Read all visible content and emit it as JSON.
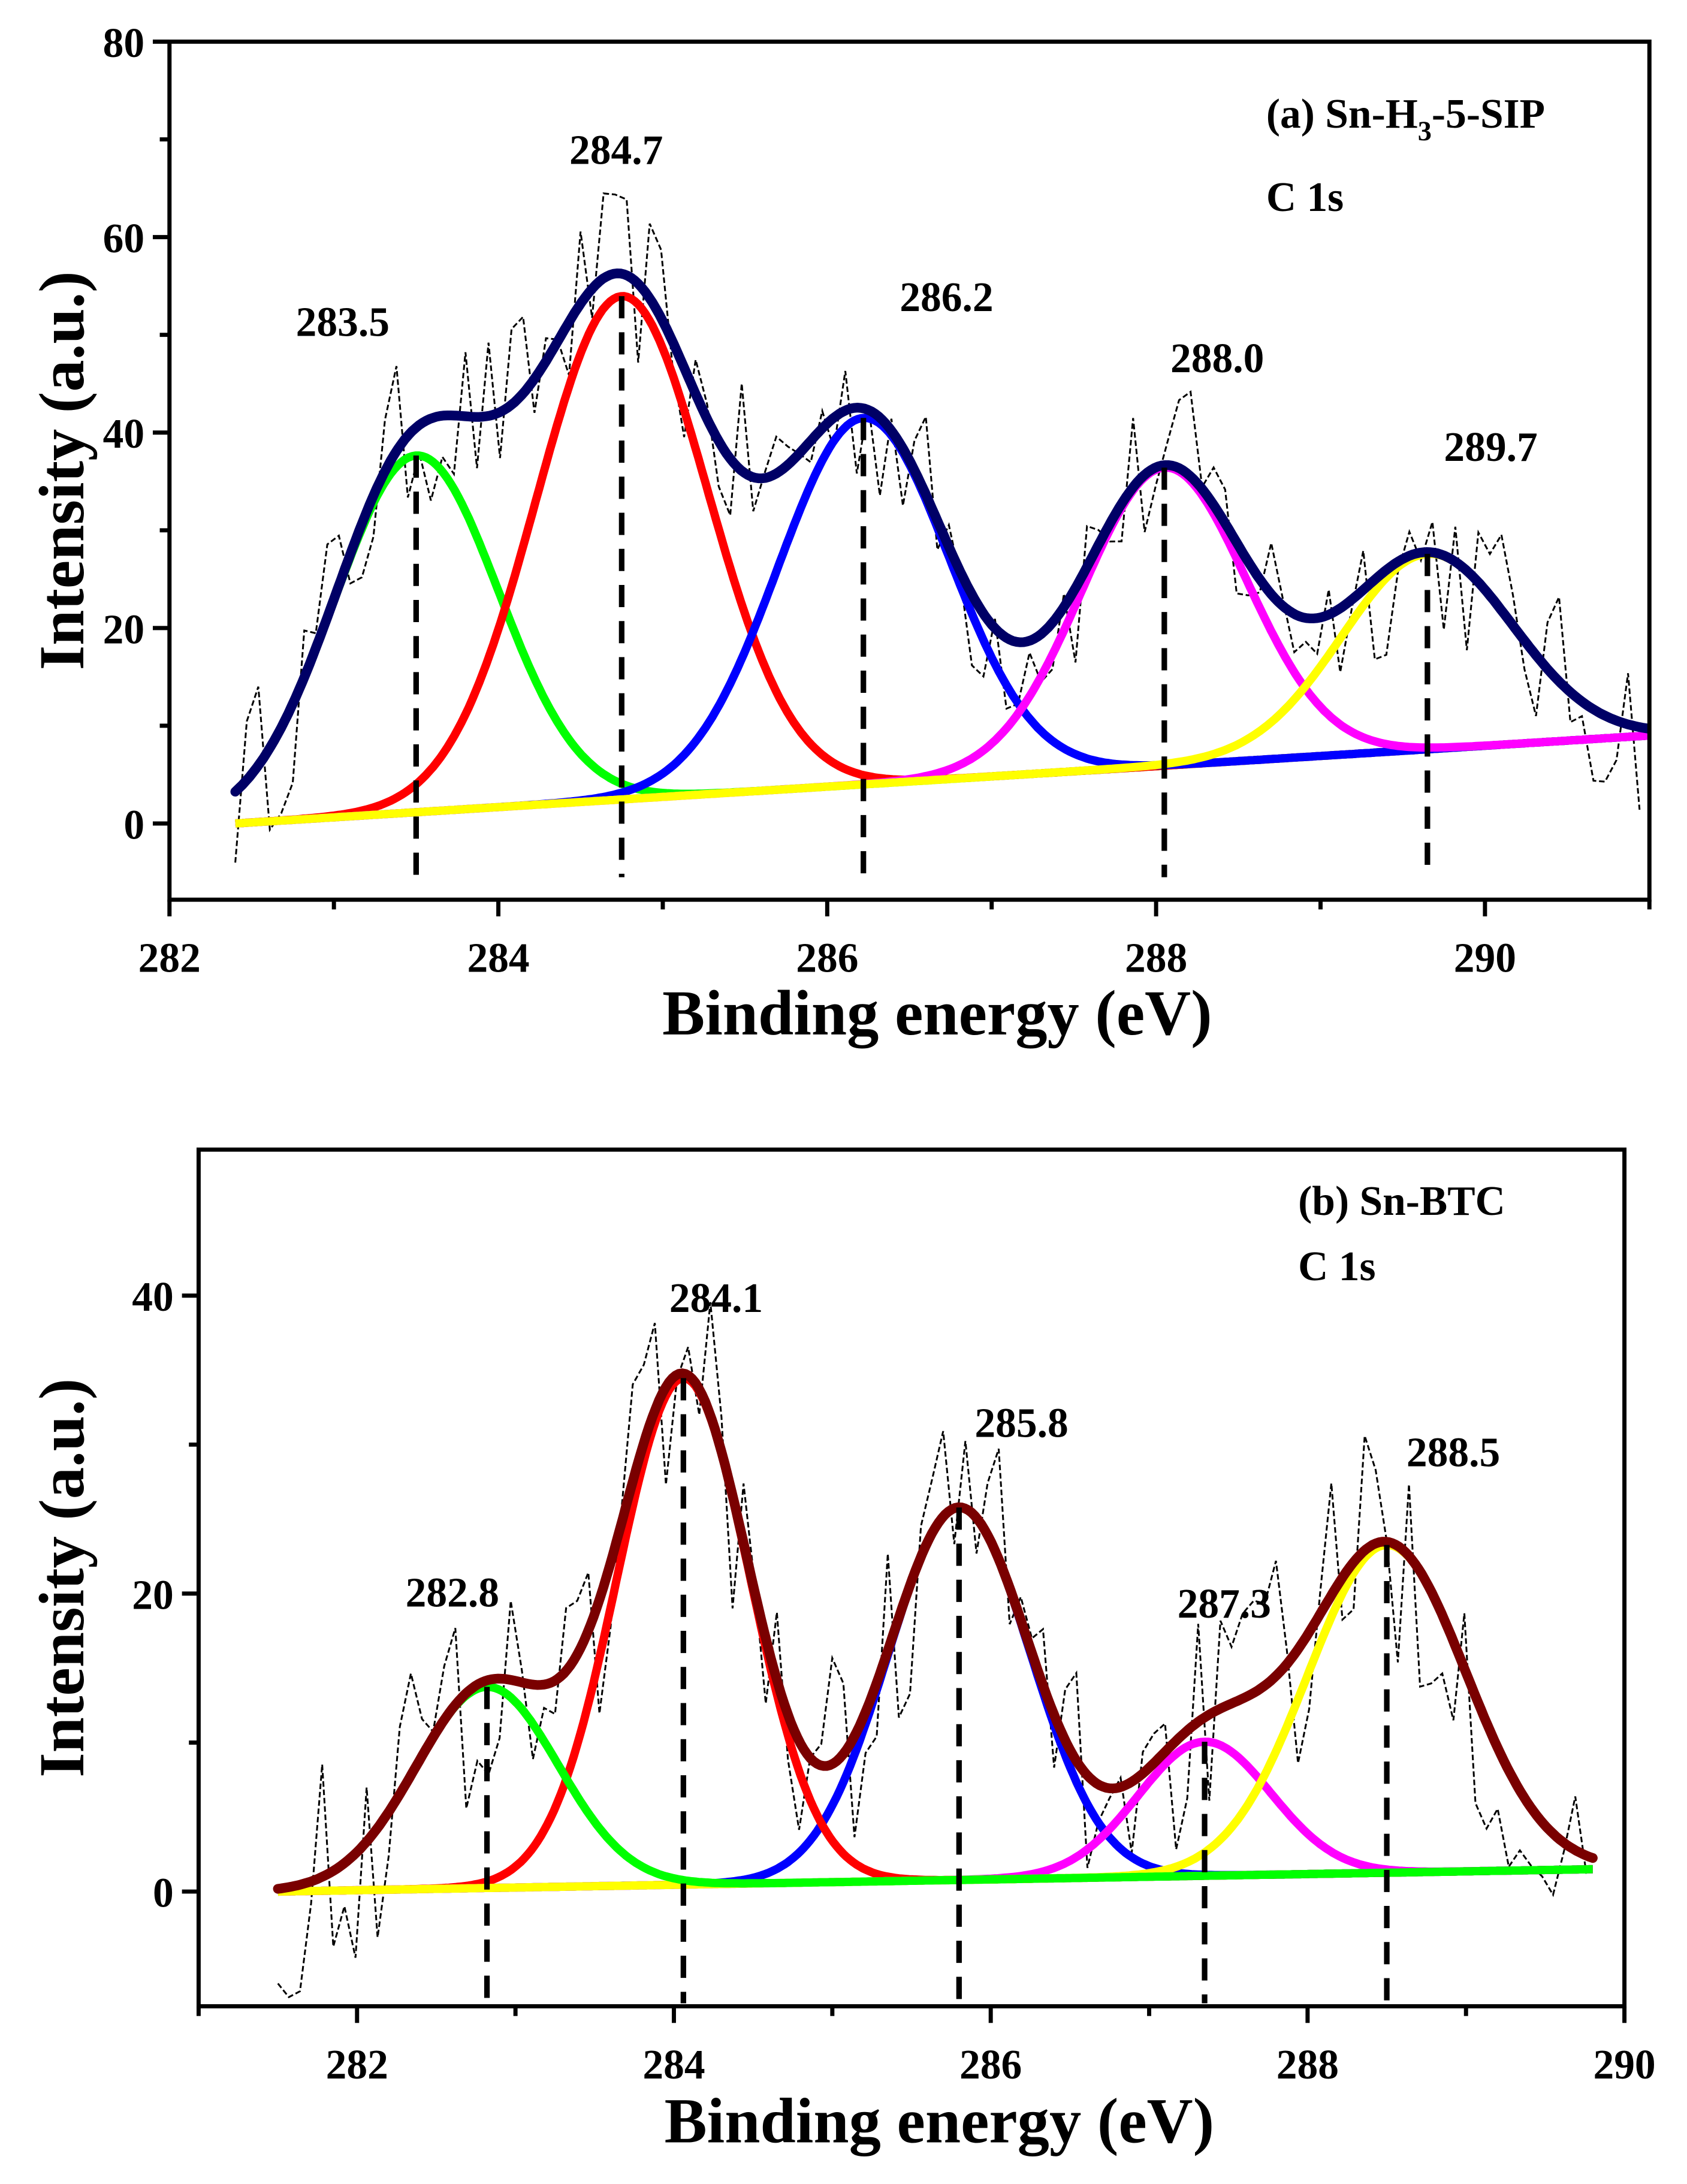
{
  "chart_data": [
    {
      "type": "line",
      "title": "(a) Sn-H3-5-SIP",
      "panel_label_parts": [
        "(a) Sn-H",
        "3",
        "-5-SIP"
      ],
      "subtitle": "C 1s",
      "xlabel": "Binding energy (eV)",
      "ylabel": "Intensity (a.u.)",
      "xlim": [
        282,
        291
      ],
      "ylim": [
        -7.8,
        80
      ],
      "xticks": [
        "282",
        "284",
        "286",
        "288",
        "290"
      ],
      "yticks": [
        "0",
        "20",
        "40",
        "60",
        "80"
      ],
      "x_range_data": [
        282.4,
        291
      ],
      "baseline": {
        "start": [
          282.4,
          0
        ],
        "end": [
          291,
          9
        ]
      },
      "envelope_color": "#000066",
      "noise_amplitude": 9,
      "peaks": [
        {
          "label": "283.5",
          "center": 283.5,
          "height": 36.5,
          "sigma": 0.5,
          "color": "#00ff00"
        },
        {
          "label": "284.7",
          "center": 284.75,
          "height": 51.5,
          "sigma": 0.52,
          "color": "#ff0000"
        },
        {
          "label": "286.2",
          "center": 286.22,
          "height": 37.5,
          "sigma": 0.52,
          "color": "#0000ff"
        },
        {
          "label": "288.0",
          "center": 288.05,
          "height": 30.5,
          "sigma": 0.5,
          "color": "#ff00ff"
        },
        {
          "label": "289.7",
          "center": 289.65,
          "height": 20,
          "sigma": 0.52,
          "color": "#ffff00"
        }
      ]
    },
    {
      "type": "line",
      "title": "(b) Sn-BTC",
      "panel_label_parts": [
        "(b) Sn-BTC",
        "",
        ""
      ],
      "subtitle": "C 1s",
      "xlabel": "Binding energy (eV)",
      "ylabel": "Intensity (a.u.)",
      "xlim": [
        281,
        290
      ],
      "ylim": [
        -7.7,
        49.8
      ],
      "xticks": [
        "282",
        "284",
        "286",
        "288",
        "290"
      ],
      "yticks": [
        "0",
        "20",
        "40"
      ],
      "x_range_data": [
        281.5,
        289.8
      ],
      "baseline": {
        "start": [
          281.5,
          0
        ],
        "end": [
          289.8,
          1.5
        ]
      },
      "envelope_color": "#7a0000",
      "noise_amplitude": 8,
      "peaks": [
        {
          "label": "282.8",
          "center": 282.82,
          "height": 13.5,
          "sigma": 0.45,
          "color": "#00ff00"
        },
        {
          "label": "284.1",
          "center": 284.06,
          "height": 34,
          "sigma": 0.42,
          "color": "#ff0000"
        },
        {
          "label": "285.8",
          "center": 285.8,
          "height": 25,
          "sigma": 0.45,
          "color": "#0000ff"
        },
        {
          "label": "287.3",
          "center": 287.35,
          "height": 9,
          "sigma": 0.42,
          "color": "#ff00ff"
        },
        {
          "label": "288.5",
          "center": 288.5,
          "height": 22,
          "sigma": 0.5,
          "color": "#ffff00"
        }
      ]
    }
  ]
}
